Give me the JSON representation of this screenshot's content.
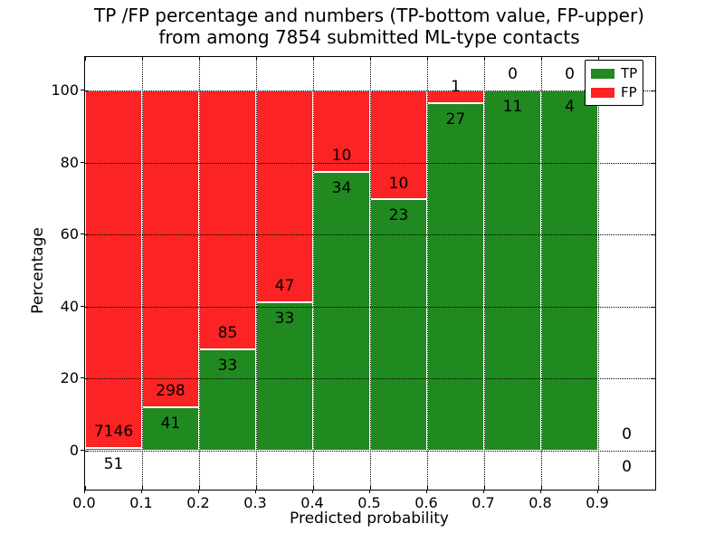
{
  "title": {
    "line1": "TP /FP percentage and numbers (TP-bottom value, FP-upper)",
    "line2": "from among 7854 submitted ML-type contacts"
  },
  "colors": {
    "tp": "#208a20",
    "fp": "#fb2323",
    "grid": "#000000",
    "bar_edge": "#ffffff",
    "background": "#ffffff"
  },
  "chart_data": {
    "type": "bar",
    "stacked": true,
    "normalized": "percent-of-bin",
    "title": "TP /FP percentage and numbers (TP-bottom value, FP-upper) from among 7854 submitted ML-type contacts",
    "xlabel": "Predicted probability",
    "ylabel": "Percentage",
    "total_submitted": 7854,
    "grid": "dotted-over-bars",
    "xlim": [
      0,
      1.0
    ],
    "ylim": [
      -10.9,
      109.3
    ],
    "xticks": [
      "0.0",
      "0.1",
      "0.2",
      "0.3",
      "0.4",
      "0.5",
      "0.6",
      "0.7",
      "0.8",
      "0.9"
    ],
    "ytick_values": [
      0,
      20,
      40,
      60,
      80,
      100
    ],
    "ytick_labels": [
      "0",
      "20",
      "40",
      "60",
      "80",
      "100"
    ],
    "bin_width": 0.1,
    "series": [
      {
        "name": "TP",
        "counts": [
          51,
          41,
          33,
          33,
          34,
          23,
          27,
          11,
          4,
          0
        ]
      },
      {
        "name": "FP",
        "counts": [
          7146,
          298,
          85,
          47,
          10,
          10,
          1,
          0,
          0,
          0
        ]
      }
    ],
    "bins": [
      {
        "range": [
          0.0,
          0.1
        ],
        "tp": 51,
        "fp": 7146,
        "tp_percent": 0.71
      },
      {
        "range": [
          0.1,
          0.2
        ],
        "tp": 41,
        "fp": 298,
        "tp_percent": 12.09
      },
      {
        "range": [
          0.2,
          0.3
        ],
        "tp": 33,
        "fp": 85,
        "tp_percent": 27.97
      },
      {
        "range": [
          0.3,
          0.4
        ],
        "tp": 33,
        "fp": 47,
        "tp_percent": 41.25
      },
      {
        "range": [
          0.4,
          0.5
        ],
        "tp": 34,
        "fp": 10,
        "tp_percent": 77.27
      },
      {
        "range": [
          0.5,
          0.6
        ],
        "tp": 23,
        "fp": 10,
        "tp_percent": 69.7
      },
      {
        "range": [
          0.6,
          0.7
        ],
        "tp": 27,
        "fp": 1,
        "tp_percent": 96.43
      },
      {
        "range": [
          0.7,
          0.8
        ],
        "tp": 11,
        "fp": 0,
        "tp_percent": 100
      },
      {
        "range": [
          0.8,
          0.9
        ],
        "tp": 4,
        "fp": 0,
        "tp_percent": 100
      },
      {
        "range": [
          0.9,
          1.0
        ],
        "tp": 0,
        "fp": 0,
        "tp_percent": 0
      }
    ],
    "legend": {
      "position": "upper-right",
      "entries": [
        {
          "label": "TP",
          "color": "#208a20"
        },
        {
          "label": "FP",
          "color": "#fb2323"
        }
      ]
    }
  }
}
